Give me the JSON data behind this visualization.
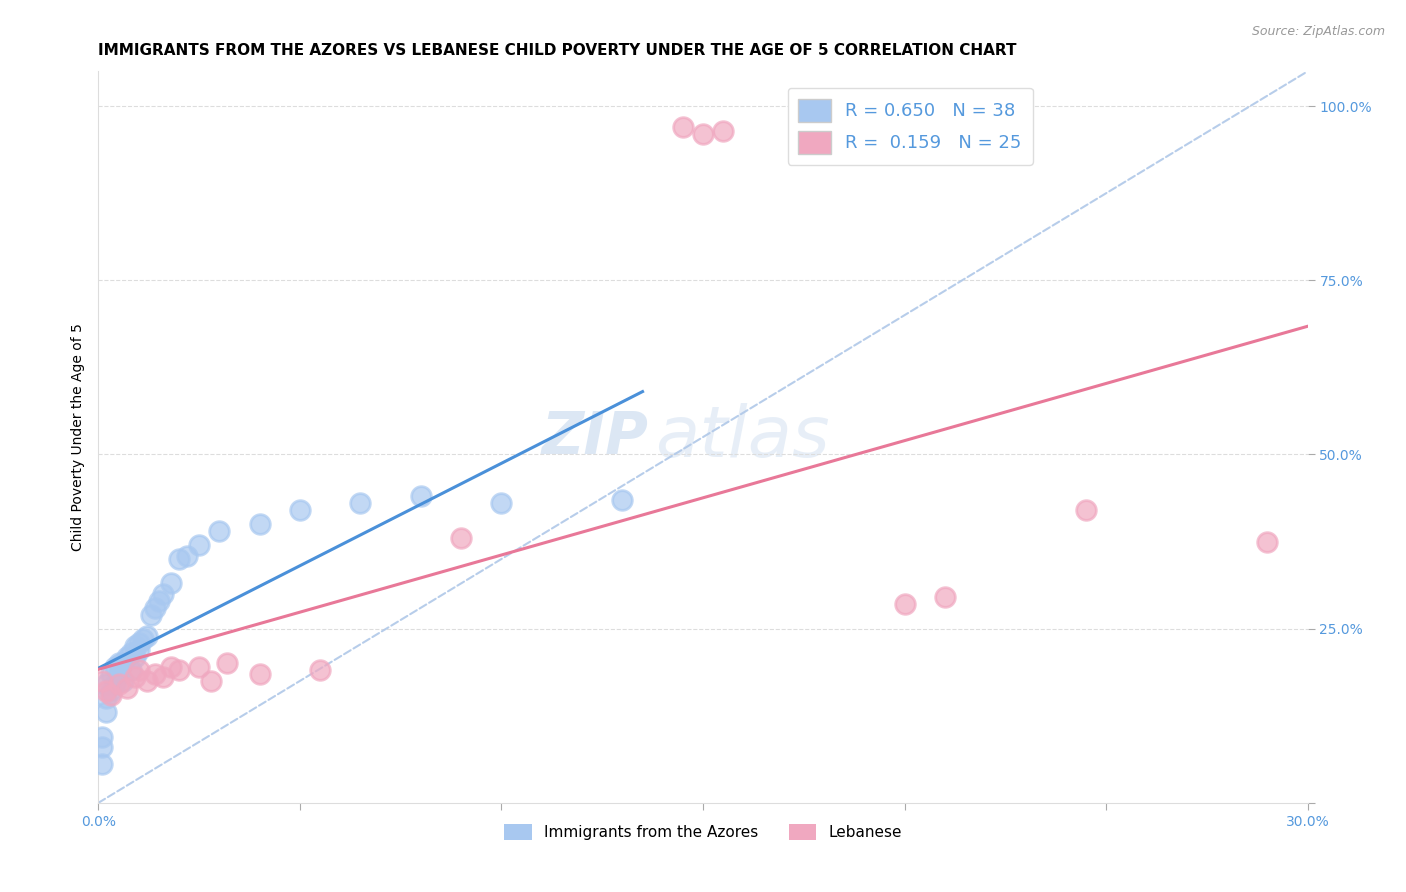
{
  "title": "IMMIGRANTS FROM THE AZORES VS LEBANESE CHILD POVERTY UNDER THE AGE OF 5 CORRELATION CHART",
  "source": "Source: ZipAtlas.com",
  "ylabel": "Child Poverty Under the Age of 5",
  "xlim": [
    0.0,
    0.3
  ],
  "ylim": [
    0.0,
    1.05
  ],
  "xticks": [
    0.0,
    0.05,
    0.1,
    0.15,
    0.2,
    0.25,
    0.3
  ],
  "xticklabels": [
    "0.0%",
    "",
    "",
    "",
    "",
    "",
    "30.0%"
  ],
  "yticks": [
    0.0,
    0.25,
    0.5,
    0.75,
    1.0
  ],
  "yticklabels": [
    "",
    "25.0%",
    "50.0%",
    "75.0%",
    "100.0%"
  ],
  "R_azores": 0.65,
  "N_azores": 38,
  "R_lebanese": 0.159,
  "N_lebanese": 25,
  "color_azores": "#a8c8f0",
  "color_lebanese": "#f0a8c0",
  "line_color_azores": "#4a90d9",
  "line_color_lebanese": "#e87898",
  "diagonal_color": "#b0c8e8",
  "text_color_blue": "#5599dd",
  "watermark_zip": "ZIP",
  "watermark_atlas": "atlas",
  "azores_x": [
    0.001,
    0.001,
    0.001,
    0.002,
    0.002,
    0.002,
    0.003,
    0.003,
    0.004,
    0.004,
    0.005,
    0.005,
    0.006,
    0.006,
    0.007,
    0.008,
    0.008,
    0.009,
    0.009,
    0.01,
    0.01,
    0.011,
    0.012,
    0.013,
    0.014,
    0.015,
    0.016,
    0.018,
    0.02,
    0.022,
    0.025,
    0.03,
    0.04,
    0.05,
    0.065,
    0.08,
    0.1,
    0.13
  ],
  "azores_y": [
    0.055,
    0.08,
    0.095,
    0.13,
    0.15,
    0.17,
    0.16,
    0.185,
    0.17,
    0.195,
    0.185,
    0.2,
    0.175,
    0.2,
    0.21,
    0.19,
    0.215,
    0.21,
    0.225,
    0.23,
    0.22,
    0.235,
    0.24,
    0.27,
    0.28,
    0.29,
    0.3,
    0.315,
    0.35,
    0.355,
    0.37,
    0.39,
    0.4,
    0.42,
    0.43,
    0.44,
    0.43,
    0.435
  ],
  "lebanese_x": [
    0.001,
    0.002,
    0.003,
    0.005,
    0.007,
    0.009,
    0.01,
    0.012,
    0.014,
    0.016,
    0.018,
    0.02,
    0.025,
    0.028,
    0.032,
    0.04,
    0.055,
    0.09,
    0.145,
    0.15,
    0.155,
    0.2,
    0.21,
    0.245,
    0.29
  ],
  "lebanese_y": [
    0.175,
    0.16,
    0.155,
    0.17,
    0.165,
    0.18,
    0.19,
    0.175,
    0.185,
    0.18,
    0.195,
    0.19,
    0.195,
    0.175,
    0.2,
    0.185,
    0.19,
    0.38,
    0.97,
    0.96,
    0.965,
    0.285,
    0.295,
    0.42,
    0.375
  ],
  "title_fontsize": 11,
  "source_fontsize": 9,
  "axis_label_fontsize": 10,
  "tick_fontsize": 10,
  "legend_fontsize": 13,
  "watermark_fontsize_zip": 42,
  "watermark_fontsize_atlas": 52
}
